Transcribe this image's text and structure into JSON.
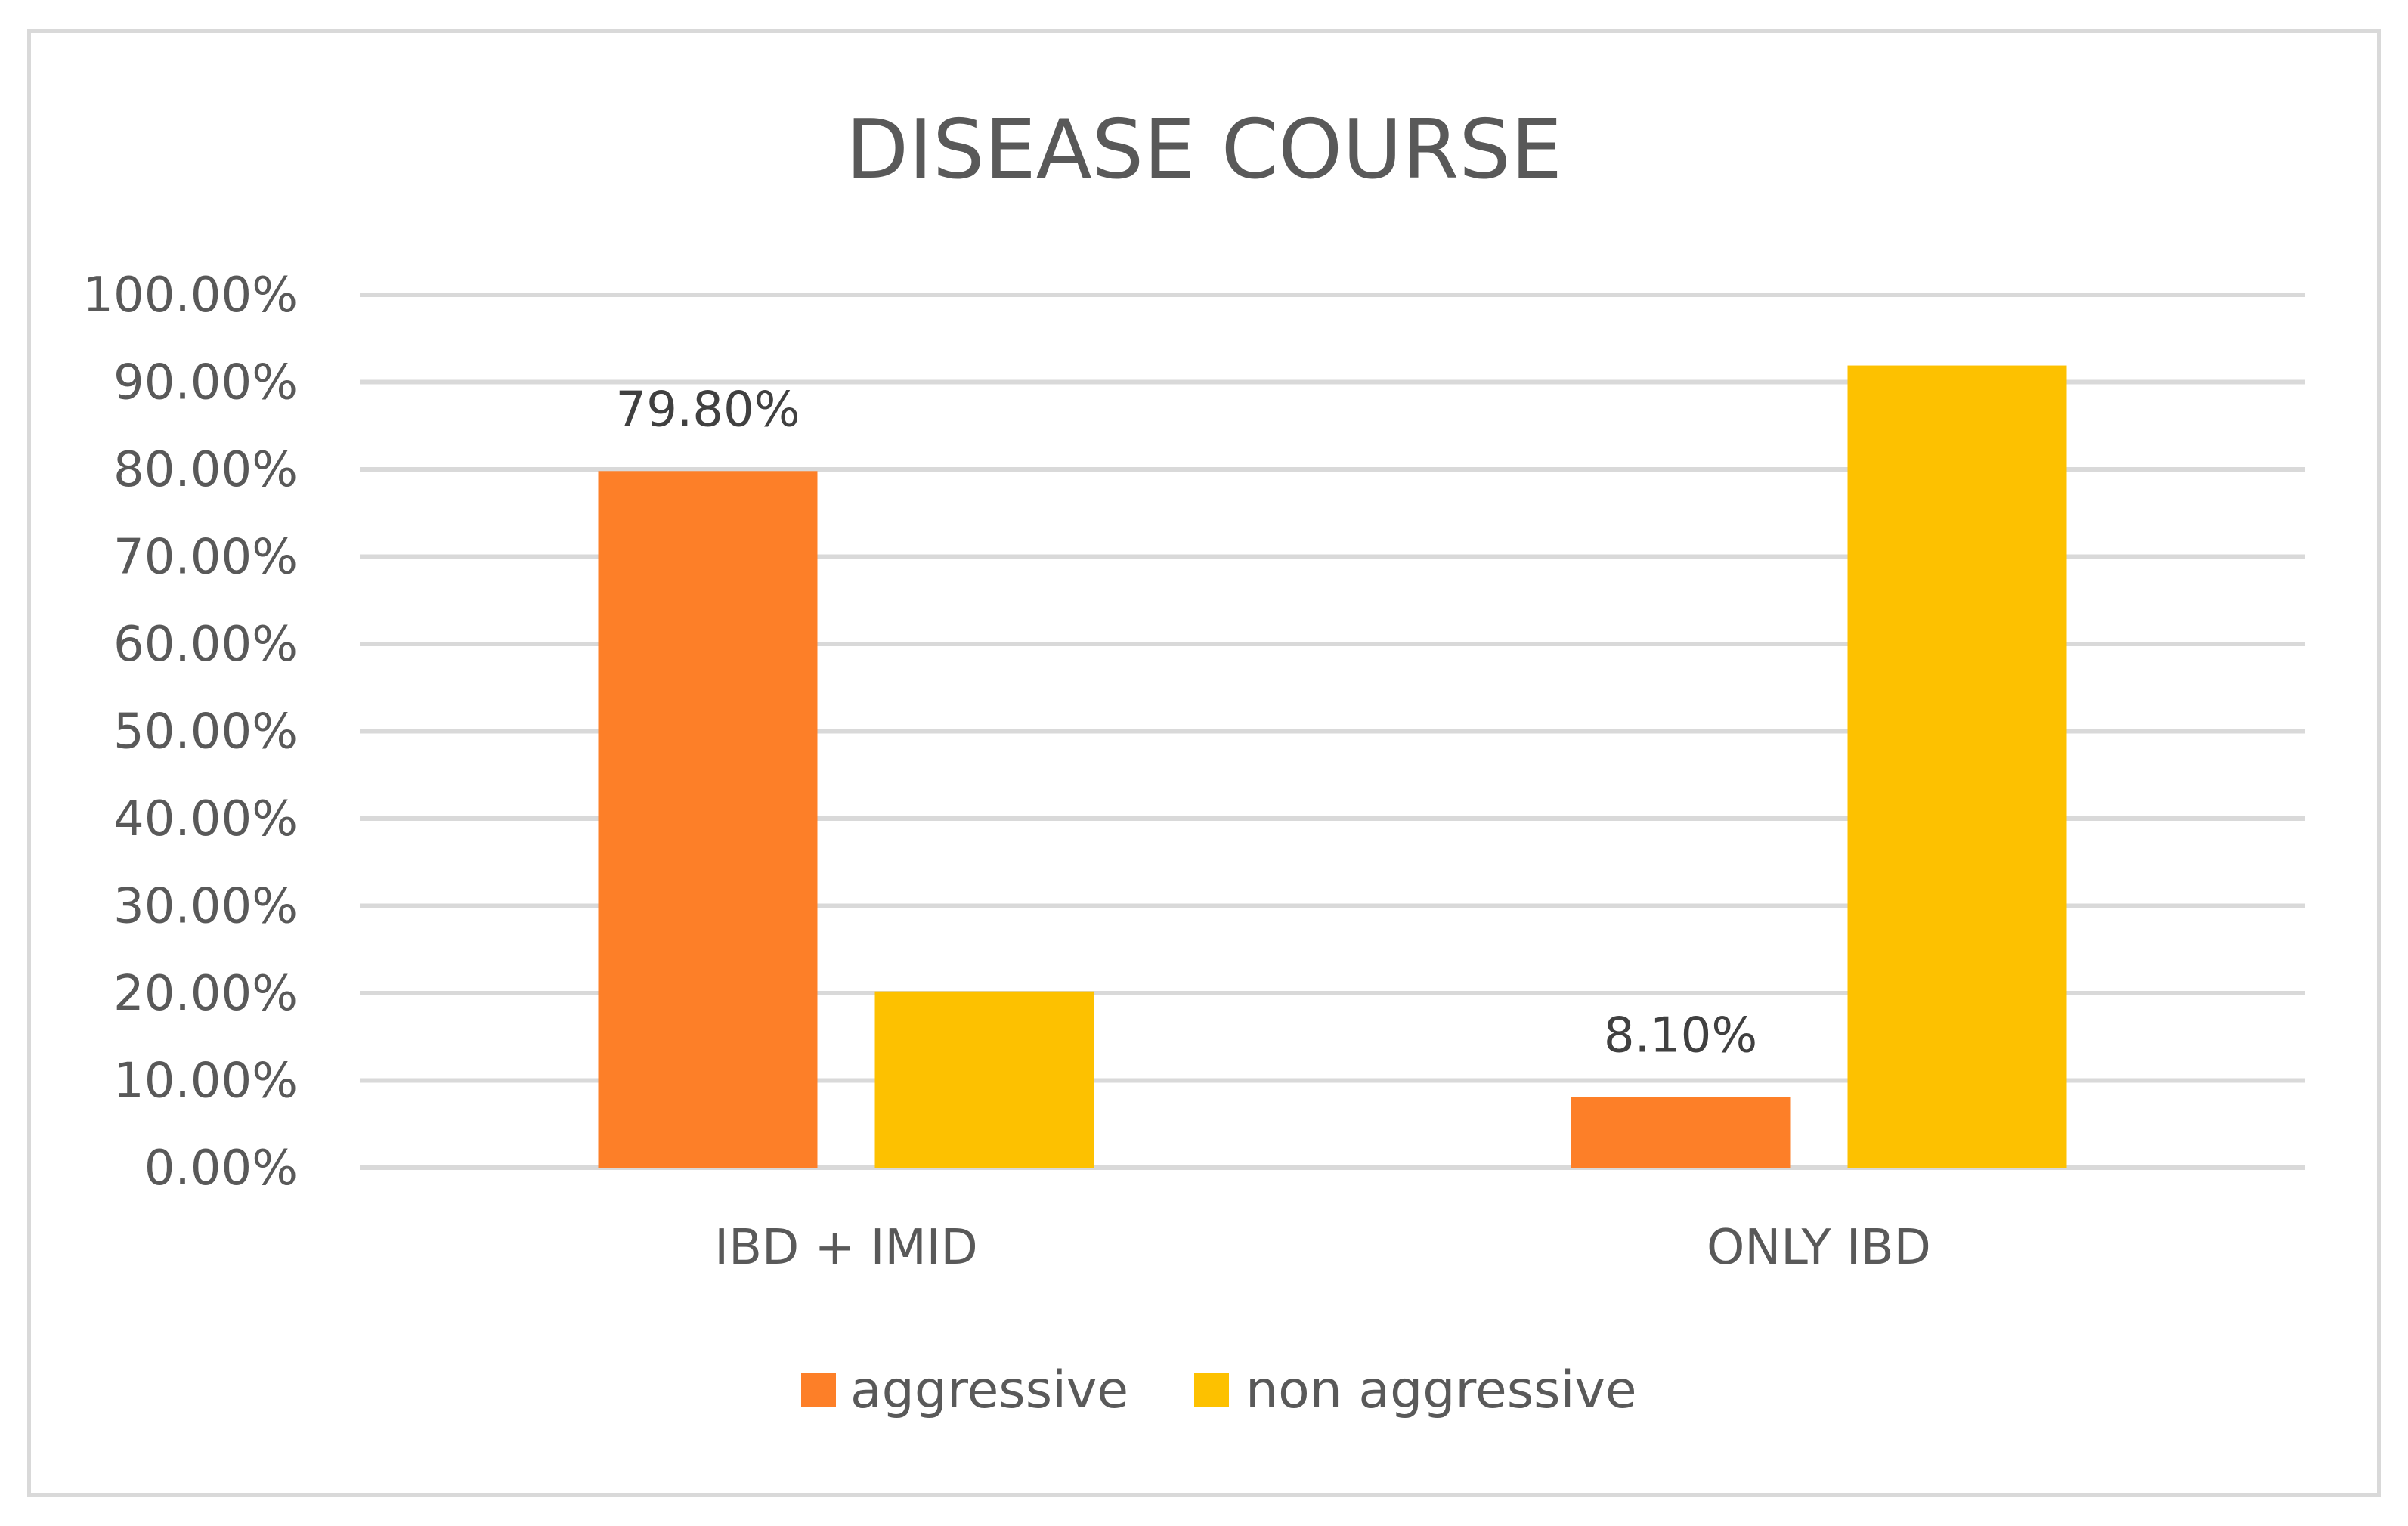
{
  "chart_data": {
    "type": "bar",
    "title": "DISEASE COURSE",
    "categories": [
      "IBD + IMID",
      "ONLY IBD"
    ],
    "series": [
      {
        "name": "aggressive",
        "color": "#fd7f28",
        "values": [
          79.8,
          8.1
        ],
        "data_labels": [
          "79.80%",
          "8.10%"
        ]
      },
      {
        "name": "non aggressive",
        "color": "#fdc100",
        "values": [
          20.2,
          91.9
        ],
        "data_labels": [
          "",
          ""
        ]
      }
    ],
    "ylim": [
      0,
      100
    ],
    "yticks": [
      0,
      10,
      20,
      30,
      40,
      50,
      60,
      70,
      80,
      90,
      100
    ],
    "ytick_labels": [
      "0.00%",
      "10.00%",
      "20.00%",
      "30.00%",
      "40.00%",
      "50.00%",
      "60.00%",
      "70.00%",
      "80.00%",
      "90.00%",
      "100.00%"
    ],
    "xlabel": "",
    "ylabel": "",
    "grid": true,
    "legend_position": "bottom"
  }
}
